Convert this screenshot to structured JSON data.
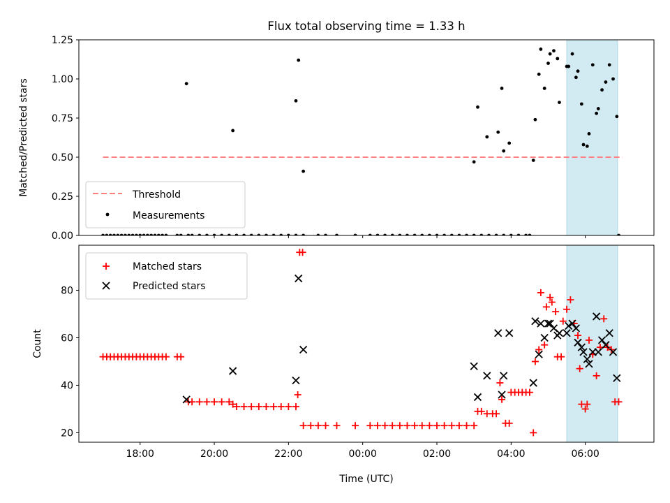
{
  "title": "Flux total observing time = 1.33 h",
  "xlabel": "Time (UTC)",
  "x_ticks": [
    "18:00",
    "20:00",
    "22:00",
    "00:00",
    "02:00",
    "04:00",
    "06:00"
  ],
  "colors": {
    "threshold": "#ff7f7f",
    "measurement": "#000000",
    "matched": "#ff0000",
    "predicted": "#000000",
    "shade": "#add8e6"
  },
  "chart_data": [
    {
      "type": "scatter",
      "ylabel": "Matched/Predicted stars",
      "x_unit": "hours since 17:00 UTC",
      "xlim": [
        -0.65,
        14.85
      ],
      "ylim": [
        0,
        1.25
      ],
      "y_ticks": [
        "0.00",
        "0.25",
        "0.50",
        "0.75",
        "1.00",
        "1.25"
      ],
      "shaded_region": [
        12.5,
        13.87
      ],
      "threshold": {
        "name": "Threshold",
        "value": 0.5,
        "x_range": [
          0,
          14.0
        ]
      },
      "legend": {
        "placement": "lower-left",
        "entries": [
          "Threshold",
          "Measurements"
        ]
      },
      "series": [
        {
          "name": "Measurements",
          "points": [
            [
              0.0,
              0
            ],
            [
              0.1,
              0
            ],
            [
              0.2,
              0
            ],
            [
              0.3,
              0
            ],
            [
              0.4,
              0
            ],
            [
              0.5,
              0
            ],
            [
              0.6,
              0
            ],
            [
              0.7,
              0
            ],
            [
              0.8,
              0
            ],
            [
              0.9,
              0
            ],
            [
              1.0,
              0
            ],
            [
              1.1,
              0
            ],
            [
              1.2,
              0
            ],
            [
              1.3,
              0
            ],
            [
              1.4,
              0
            ],
            [
              1.5,
              0
            ],
            [
              1.6,
              0
            ],
            [
              1.7,
              0
            ],
            [
              2.0,
              0
            ],
            [
              2.1,
              0
            ],
            [
              2.3,
              0
            ],
            [
              2.4,
              0
            ],
            [
              2.6,
              0
            ],
            [
              2.8,
              0
            ],
            [
              3.0,
              0
            ],
            [
              3.2,
              0
            ],
            [
              3.4,
              0
            ],
            [
              3.6,
              0
            ],
            [
              3.8,
              0
            ],
            [
              4.0,
              0
            ],
            [
              4.2,
              0
            ],
            [
              4.4,
              0
            ],
            [
              4.6,
              0
            ],
            [
              4.8,
              0
            ],
            [
              5.0,
              0
            ],
            [
              5.2,
              0
            ],
            [
              5.4,
              0
            ],
            [
              5.8,
              0
            ],
            [
              6.0,
              0
            ],
            [
              6.3,
              0
            ],
            [
              6.8,
              0
            ],
            [
              7.2,
              0
            ],
            [
              7.4,
              0
            ],
            [
              7.6,
              0
            ],
            [
              7.8,
              0
            ],
            [
              8.0,
              0
            ],
            [
              8.2,
              0
            ],
            [
              8.4,
              0
            ],
            [
              8.6,
              0
            ],
            [
              8.8,
              0
            ],
            [
              9.0,
              0
            ],
            [
              9.2,
              0
            ],
            [
              9.4,
              0
            ],
            [
              9.6,
              0
            ],
            [
              9.8,
              0
            ],
            [
              10.0,
              0
            ],
            [
              10.2,
              0
            ],
            [
              10.4,
              0
            ],
            [
              10.6,
              0
            ],
            [
              10.8,
              0
            ],
            [
              11.0,
              0
            ],
            [
              11.2,
              0
            ],
            [
              11.4,
              0
            ],
            [
              11.5,
              0
            ],
            [
              13.9,
              0
            ],
            [
              2.25,
              0.97
            ],
            [
              3.5,
              0.67
            ],
            [
              5.2,
              0.86
            ],
            [
              5.27,
              1.12
            ],
            [
              5.4,
              0.41
            ],
            [
              10.0,
              0.47
            ],
            [
              10.1,
              0.82
            ],
            [
              10.35,
              0.63
            ],
            [
              10.65,
              0.66
            ],
            [
              10.75,
              0.94
            ],
            [
              10.8,
              0.54
            ],
            [
              10.95,
              0.59
            ],
            [
              11.6,
              0.48
            ],
            [
              11.65,
              0.74
            ],
            [
              11.75,
              1.03
            ],
            [
              11.8,
              1.19
            ],
            [
              11.9,
              0.94
            ],
            [
              12.0,
              1.1
            ],
            [
              12.05,
              1.16
            ],
            [
              12.15,
              1.18
            ],
            [
              12.25,
              1.13
            ],
            [
              12.3,
              0.85
            ],
            [
              12.5,
              1.08
            ],
            [
              12.55,
              1.08
            ],
            [
              12.65,
              1.16
            ],
            [
              12.75,
              1.01
            ],
            [
              12.8,
              1.05
            ],
            [
              12.9,
              0.84
            ],
            [
              12.95,
              0.58
            ],
            [
              13.05,
              0.57
            ],
            [
              13.1,
              0.65
            ],
            [
              13.2,
              1.09
            ],
            [
              13.3,
              0.78
            ],
            [
              13.35,
              0.81
            ],
            [
              13.45,
              0.93
            ],
            [
              13.55,
              0.98
            ],
            [
              13.65,
              1.09
            ],
            [
              13.75,
              1.0
            ],
            [
              13.85,
              0.76
            ]
          ]
        }
      ]
    },
    {
      "type": "scatter",
      "ylabel": "Count",
      "x_unit": "hours since 17:00 UTC",
      "xlim": [
        -0.65,
        14.85
      ],
      "ylim": [
        16,
        99
      ],
      "y_ticks": [
        "20",
        "40",
        "60",
        "80"
      ],
      "shaded_region": [
        12.5,
        13.87
      ],
      "legend": {
        "placement": "upper-left",
        "entries": [
          "Matched stars",
          "Predicted stars"
        ]
      },
      "series": [
        {
          "name": "Matched stars",
          "marker": "plus",
          "points": [
            [
              0.0,
              52
            ],
            [
              0.1,
              52
            ],
            [
              0.2,
              52
            ],
            [
              0.3,
              52
            ],
            [
              0.4,
              52
            ],
            [
              0.5,
              52
            ],
            [
              0.6,
              52
            ],
            [
              0.7,
              52
            ],
            [
              0.8,
              52
            ],
            [
              0.9,
              52
            ],
            [
              1.0,
              52
            ],
            [
              1.1,
              52
            ],
            [
              1.2,
              52
            ],
            [
              1.3,
              52
            ],
            [
              1.4,
              52
            ],
            [
              1.5,
              52
            ],
            [
              1.6,
              52
            ],
            [
              1.7,
              52
            ],
            [
              2.0,
              52
            ],
            [
              2.1,
              52
            ],
            [
              2.3,
              33
            ],
            [
              2.4,
              33
            ],
            [
              2.6,
              33
            ],
            [
              2.8,
              33
            ],
            [
              3.0,
              33
            ],
            [
              3.2,
              33
            ],
            [
              3.4,
              33
            ],
            [
              3.5,
              32
            ],
            [
              3.6,
              31
            ],
            [
              3.8,
              31
            ],
            [
              4.0,
              31
            ],
            [
              4.2,
              31
            ],
            [
              4.4,
              31
            ],
            [
              4.6,
              31
            ],
            [
              4.8,
              31
            ],
            [
              5.0,
              31
            ],
            [
              5.2,
              31
            ],
            [
              5.25,
              36
            ],
            [
              5.3,
              96
            ],
            [
              5.38,
              96
            ],
            [
              5.4,
              23
            ],
            [
              5.6,
              23
            ],
            [
              5.8,
              23
            ],
            [
              6.0,
              23
            ],
            [
              6.3,
              23
            ],
            [
              6.8,
              23
            ],
            [
              7.2,
              23
            ],
            [
              7.4,
              23
            ],
            [
              7.6,
              23
            ],
            [
              7.8,
              23
            ],
            [
              8.0,
              23
            ],
            [
              8.2,
              23
            ],
            [
              8.4,
              23
            ],
            [
              8.6,
              23
            ],
            [
              8.8,
              23
            ],
            [
              9.0,
              23
            ],
            [
              9.2,
              23
            ],
            [
              9.4,
              23
            ],
            [
              9.6,
              23
            ],
            [
              9.8,
              23
            ],
            [
              10.0,
              23
            ],
            [
              10.1,
              29
            ],
            [
              10.2,
              29
            ],
            [
              10.35,
              28
            ],
            [
              10.5,
              28
            ],
            [
              10.6,
              28
            ],
            [
              10.7,
              41
            ],
            [
              10.75,
              34
            ],
            [
              10.85,
              24
            ],
            [
              10.95,
              24
            ],
            [
              11.0,
              37
            ],
            [
              11.1,
              37
            ],
            [
              11.2,
              37
            ],
            [
              11.3,
              37
            ],
            [
              11.4,
              37
            ],
            [
              11.5,
              37
            ],
            [
              11.6,
              20
            ],
            [
              11.65,
              50
            ],
            [
              11.75,
              55
            ],
            [
              11.8,
              79
            ],
            [
              11.9,
              57
            ],
            [
              11.95,
              73
            ],
            [
              12.05,
              77
            ],
            [
              12.1,
              75
            ],
            [
              12.2,
              71
            ],
            [
              12.25,
              52
            ],
            [
              12.35,
              52
            ],
            [
              12.4,
              67
            ],
            [
              12.5,
              72
            ],
            [
              12.6,
              76
            ],
            [
              12.7,
              66
            ],
            [
              12.8,
              61
            ],
            [
              12.85,
              47
            ],
            [
              12.9,
              32
            ],
            [
              13.0,
              30
            ],
            [
              13.05,
              32
            ],
            [
              13.1,
              59
            ],
            [
              13.2,
              53
            ],
            [
              13.3,
              44
            ],
            [
              13.4,
              56
            ],
            [
              13.5,
              68
            ],
            [
              13.6,
              56
            ],
            [
              13.7,
              55
            ],
            [
              13.8,
              33
            ],
            [
              13.9,
              33
            ]
          ]
        },
        {
          "name": "Predicted stars",
          "marker": "x",
          "points": [
            [
              2.25,
              34
            ],
            [
              3.5,
              46
            ],
            [
              5.2,
              42
            ],
            [
              5.27,
              85
            ],
            [
              5.4,
              55
            ],
            [
              10.0,
              48
            ],
            [
              10.1,
              35
            ],
            [
              10.35,
              44
            ],
            [
              10.65,
              62
            ],
            [
              10.75,
              36
            ],
            [
              10.8,
              44
            ],
            [
              10.95,
              62
            ],
            [
              11.6,
              41
            ],
            [
              11.65,
              67
            ],
            [
              11.75,
              53
            ],
            [
              11.8,
              66
            ],
            [
              11.9,
              60
            ],
            [
              12.0,
              66
            ],
            [
              12.05,
              66
            ],
            [
              12.15,
              64
            ],
            [
              12.25,
              61
            ],
            [
              12.3,
              62
            ],
            [
              12.5,
              62
            ],
            [
              12.55,
              65
            ],
            [
              12.65,
              66
            ],
            [
              12.75,
              64
            ],
            [
              12.8,
              58
            ],
            [
              12.9,
              56
            ],
            [
              12.95,
              54
            ],
            [
              13.05,
              51
            ],
            [
              13.1,
              49
            ],
            [
              13.2,
              54
            ],
            [
              13.3,
              69
            ],
            [
              13.35,
              54
            ],
            [
              13.45,
              59
            ],
            [
              13.55,
              57
            ],
            [
              13.65,
              62
            ],
            [
              13.75,
              54
            ],
            [
              13.85,
              43
            ]
          ]
        }
      ]
    }
  ]
}
